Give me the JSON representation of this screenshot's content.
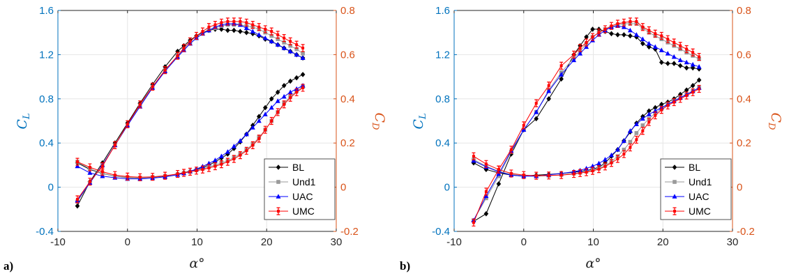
{
  "colors": {
    "left_axis": "#0072BD",
    "right_axis": "#D95319",
    "BL": "#000000",
    "Und1": "#999999",
    "UAC": "#0000FF",
    "UMC": "#FF0000"
  },
  "chart_data": [
    {
      "type": "line",
      "panel_label": "a)",
      "xlabel": "α°",
      "ylabel_left": "C_L",
      "ylabel_right": "C_D",
      "xlim": [
        -10,
        30
      ],
      "ylim_left": [
        -0.4,
        1.6
      ],
      "ylim_right": [
        -0.2,
        0.8
      ],
      "xticks": [
        "-10",
        "0",
        "10",
        "20",
        "30"
      ],
      "yticks_left": [
        "-0.4",
        "0",
        "0.4",
        "0.8",
        "1.2",
        "1.6"
      ],
      "yticks_right": [
        "-0.2",
        "0",
        "0.2",
        "0.4",
        "0.6",
        "0.8"
      ],
      "grid": true,
      "legend": "bottom-right",
      "x": [
        -7.2,
        -5.4,
        -3.6,
        -1.8,
        0,
        1.8,
        3.6,
        5.4,
        7.2,
        8.1,
        9.0,
        9.9,
        10.8,
        11.7,
        12.6,
        13.5,
        14.4,
        15.3,
        16.2,
        17.1,
        18.0,
        18.9,
        19.8,
        20.7,
        21.6,
        22.5,
        23.4,
        24.3,
        25.2
      ],
      "series": [
        {
          "name": "BL",
          "axis": "left",
          "quantity": "CL",
          "values": [
            -0.17,
            0.05,
            0.22,
            0.4,
            0.58,
            0.76,
            0.93,
            1.09,
            1.23,
            1.28,
            1.33,
            1.37,
            1.4,
            1.42,
            1.43,
            1.43,
            1.42,
            1.42,
            1.41,
            1.4,
            1.39,
            1.37,
            1.34,
            1.32,
            1.29,
            1.26,
            1.23,
            1.2,
            1.17
          ]
        },
        {
          "name": "BL",
          "axis": "right",
          "quantity": "CD",
          "values": [
            0.11,
            0.08,
            0.062,
            0.05,
            0.044,
            0.042,
            0.045,
            0.05,
            0.06,
            0.066,
            0.072,
            0.08,
            0.09,
            0.1,
            0.115,
            0.132,
            0.15,
            0.175,
            0.205,
            0.24,
            0.28,
            0.32,
            0.36,
            0.4,
            0.43,
            0.46,
            0.48,
            0.495,
            0.51
          ]
        },
        {
          "name": "Und1",
          "axis": "left",
          "quantity": "CL",
          "values": [
            -0.13,
            0.04,
            0.2,
            0.38,
            0.56,
            0.74,
            0.91,
            1.06,
            1.19,
            1.25,
            1.3,
            1.35,
            1.39,
            1.42,
            1.44,
            1.46,
            1.47,
            1.47,
            1.47,
            1.46,
            1.45,
            1.43,
            1.4,
            1.37,
            1.34,
            1.31,
            1.28,
            1.25,
            1.21
          ]
        },
        {
          "name": "Und1",
          "axis": "right",
          "quantity": "CD",
          "values": [
            0.115,
            0.083,
            0.063,
            0.05,
            0.045,
            0.043,
            0.046,
            0.051,
            0.058,
            0.064,
            0.07,
            0.077,
            0.084,
            0.092,
            0.1,
            0.11,
            0.12,
            0.135,
            0.15,
            0.17,
            0.195,
            0.225,
            0.26,
            0.3,
            0.34,
            0.38,
            0.41,
            0.435,
            0.455
          ]
        },
        {
          "name": "UAC",
          "axis": "left",
          "quantity": "CL",
          "values": [
            -0.12,
            0.04,
            0.2,
            0.38,
            0.56,
            0.73,
            0.9,
            1.05,
            1.18,
            1.24,
            1.3,
            1.35,
            1.39,
            1.42,
            1.45,
            1.47,
            1.48,
            1.48,
            1.47,
            1.44,
            1.41,
            1.38,
            1.35,
            1.32,
            1.29,
            1.26,
            1.23,
            1.2,
            1.17
          ]
        },
        {
          "name": "UAC",
          "axis": "right",
          "quantity": "CD",
          "values": [
            0.095,
            0.065,
            0.05,
            0.043,
            0.038,
            0.038,
            0.041,
            0.047,
            0.056,
            0.063,
            0.072,
            0.082,
            0.094,
            0.108,
            0.122,
            0.14,
            0.16,
            0.185,
            0.21,
            0.24,
            0.27,
            0.3,
            0.33,
            0.36,
            0.39,
            0.41,
            0.43,
            0.445,
            0.46
          ]
        },
        {
          "name": "UMC",
          "axis": "left",
          "quantity": "CL",
          "values": [
            -0.11,
            0.05,
            0.19,
            0.38,
            0.57,
            0.75,
            0.91,
            1.06,
            1.19,
            1.26,
            1.32,
            1.37,
            1.41,
            1.45,
            1.47,
            1.49,
            1.5,
            1.5,
            1.5,
            1.49,
            1.47,
            1.45,
            1.43,
            1.41,
            1.38,
            1.35,
            1.32,
            1.29,
            1.26
          ]
        },
        {
          "name": "UMC",
          "axis": "right",
          "quantity": "CD",
          "values": [
            0.115,
            0.09,
            0.07,
            0.055,
            0.048,
            0.045,
            0.047,
            0.052,
            0.06,
            0.065,
            0.07,
            0.075,
            0.08,
            0.087,
            0.095,
            0.104,
            0.115,
            0.128,
            0.145,
            0.165,
            0.19,
            0.22,
            0.26,
            0.3,
            0.34,
            0.375,
            0.405,
            0.43,
            0.45
          ]
        }
      ]
    },
    {
      "type": "line",
      "panel_label": "b)",
      "xlabel": "α°",
      "ylabel_left": "C_L",
      "ylabel_right": "C_D",
      "xlim": [
        -10,
        30
      ],
      "ylim_left": [
        -0.4,
        1.6
      ],
      "ylim_right": [
        -0.2,
        0.8
      ],
      "xticks": [
        "-10",
        "0",
        "10",
        "20",
        "30"
      ],
      "yticks_left": [
        "-0.4",
        "0",
        "0.4",
        "0.8",
        "1.2",
        "1.6"
      ],
      "yticks_right": [
        "-0.2",
        "0",
        "0.2",
        "0.4",
        "0.6",
        "0.8"
      ],
      "grid": true,
      "legend": "bottom-right",
      "x": [
        -7.2,
        -5.4,
        -3.6,
        -1.8,
        0,
        1.8,
        3.6,
        5.4,
        7.2,
        8.1,
        9.0,
        9.9,
        10.8,
        11.7,
        12.6,
        13.5,
        14.4,
        15.3,
        16.2,
        17.1,
        18.0,
        18.9,
        19.8,
        20.7,
        21.6,
        22.5,
        23.4,
        24.3,
        25.2
      ],
      "series": [
        {
          "name": "BL",
          "axis": "left",
          "quantity": "CL",
          "values": [
            -0.31,
            -0.24,
            0.03,
            0.3,
            0.52,
            0.62,
            0.8,
            0.98,
            1.2,
            1.28,
            1.36,
            1.43,
            1.43,
            1.41,
            1.39,
            1.38,
            1.38,
            1.37,
            1.36,
            1.3,
            1.27,
            1.25,
            1.13,
            1.12,
            1.12,
            1.1,
            1.08,
            1.08,
            1.07
          ]
        },
        {
          "name": "BL",
          "axis": "right",
          "quantity": "CD",
          "values": [
            0.11,
            0.08,
            0.065,
            0.055,
            0.05,
            0.055,
            0.058,
            0.062,
            0.068,
            0.072,
            0.075,
            0.082,
            0.09,
            0.11,
            0.14,
            0.17,
            0.21,
            0.25,
            0.29,
            0.32,
            0.345,
            0.36,
            0.375,
            0.385,
            0.4,
            0.42,
            0.44,
            0.46,
            0.485
          ]
        },
        {
          "name": "Und1",
          "axis": "left",
          "quantity": "CL",
          "values": [
            -0.3,
            -0.1,
            0.1,
            0.32,
            0.52,
            0.68,
            0.88,
            1.04,
            1.17,
            1.23,
            1.3,
            1.36,
            1.4,
            1.43,
            1.45,
            1.47,
            1.48,
            1.48,
            1.48,
            1.44,
            1.4,
            1.37,
            1.34,
            1.31,
            1.28,
            1.25,
            1.22,
            1.19,
            1.16
          ]
        },
        {
          "name": "Und1",
          "axis": "right",
          "quantity": "CD",
          "values": [
            0.125,
            0.095,
            0.072,
            0.058,
            0.052,
            0.05,
            0.052,
            0.056,
            0.062,
            0.066,
            0.071,
            0.077,
            0.085,
            0.098,
            0.115,
            0.14,
            0.17,
            0.205,
            0.245,
            0.28,
            0.31,
            0.335,
            0.355,
            0.375,
            0.39,
            0.405,
            0.42,
            0.435,
            0.45
          ]
        },
        {
          "name": "UAC",
          "axis": "left",
          "quantity": "CL",
          "values": [
            -0.3,
            -0.08,
            0.12,
            0.33,
            0.52,
            0.68,
            0.87,
            1.02,
            1.15,
            1.21,
            1.27,
            1.33,
            1.38,
            1.42,
            1.45,
            1.46,
            1.45,
            1.42,
            1.38,
            1.34,
            1.3,
            1.27,
            1.24,
            1.21,
            1.18,
            1.15,
            1.13,
            1.11,
            1.09
          ]
        },
        {
          "name": "UAC",
          "axis": "right",
          "quantity": "CD",
          "values": [
            0.12,
            0.092,
            0.07,
            0.055,
            0.05,
            0.05,
            0.056,
            0.062,
            0.07,
            0.076,
            0.085,
            0.095,
            0.108,
            0.125,
            0.145,
            0.17,
            0.21,
            0.255,
            0.285,
            0.31,
            0.33,
            0.345,
            0.36,
            0.375,
            0.39,
            0.405,
            0.42,
            0.435,
            0.45
          ]
        },
        {
          "name": "UMC",
          "axis": "left",
          "quantity": "CL",
          "values": [
            -0.32,
            -0.04,
            0.16,
            0.34,
            0.56,
            0.76,
            0.92,
            1.1,
            1.2,
            1.26,
            1.31,
            1.36,
            1.4,
            1.43,
            1.46,
            1.48,
            1.49,
            1.5,
            1.5,
            1.45,
            1.42,
            1.39,
            1.37,
            1.34,
            1.31,
            1.28,
            1.25,
            1.22,
            1.18
          ]
        },
        {
          "name": "UMC",
          "axis": "right",
          "quantity": "CD",
          "values": [
            0.14,
            0.105,
            0.08,
            0.062,
            0.055,
            0.052,
            0.053,
            0.055,
            0.06,
            0.064,
            0.068,
            0.074,
            0.082,
            0.094,
            0.11,
            0.128,
            0.15,
            0.18,
            0.215,
            0.255,
            0.295,
            0.325,
            0.35,
            0.37,
            0.385,
            0.4,
            0.415,
            0.43,
            0.445
          ]
        }
      ]
    }
  ],
  "legend_entries": [
    "BL",
    "Und1",
    "UAC",
    "UMC"
  ]
}
